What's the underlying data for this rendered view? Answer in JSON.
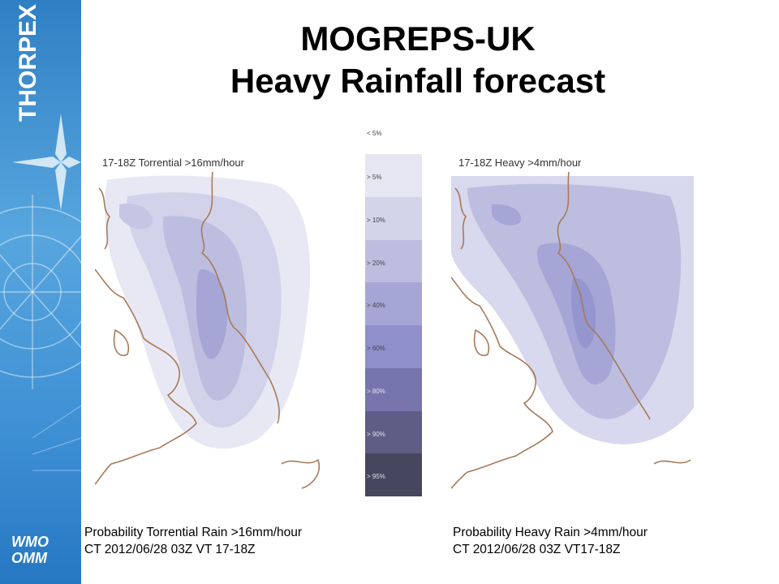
{
  "sidebar": {
    "brand": "THORPEX",
    "logo_line1": "WMO",
    "logo_line2": "OMM"
  },
  "title": {
    "line1": "MOGREPS-UK",
    "line2": "Heavy Rainfall forecast"
  },
  "maps": [
    {
      "label": "17-18Z Torrential >16mm/hour",
      "caption_line1": "Probability Torrential Rain >16mm/hour",
      "caption_line2": "CT 2012/06/28 03Z VT 17-18Z"
    },
    {
      "label": "17-18Z Heavy >4mm/hour",
      "caption_line1": "Probability Heavy Rain >4mm/hour",
      "caption_line2": "CT 2012/06/28 03Z VT17-18Z"
    }
  ],
  "legend": {
    "top_label": "< 5%",
    "bins": [
      {
        "label": "> 5%",
        "color": "#e6e6f2"
      },
      {
        "label": "> 10%",
        "color": "#d3d3ea"
      },
      {
        "label": "> 20%",
        "color": "#bdbde0"
      },
      {
        "label": "> 40%",
        "color": "#a6a6d6"
      },
      {
        "label": "> 60%",
        "color": "#8f8fcb"
      },
      {
        "label": "> 80%",
        "color": "#7676ad"
      },
      {
        "label": "> 90%",
        "color": "#5d5d86"
      },
      {
        "label": "> 95%",
        "color": "#46465f"
      }
    ]
  },
  "colors": {
    "coastline": "#a77a5a",
    "sidebar": "#3d8fd4"
  }
}
